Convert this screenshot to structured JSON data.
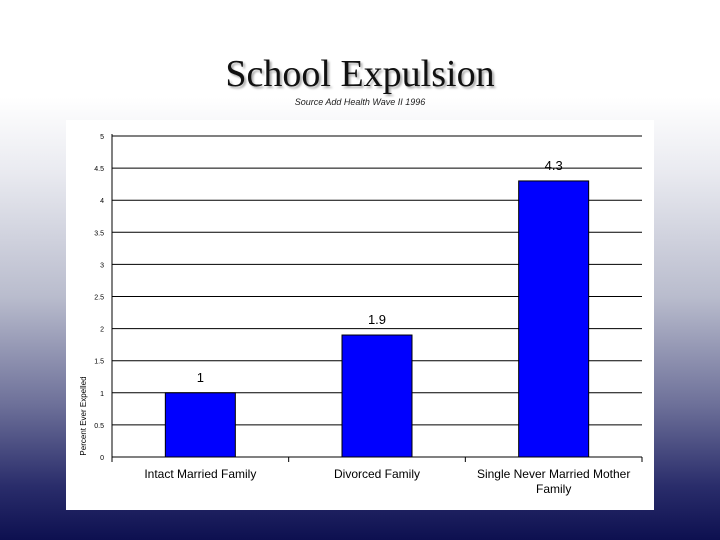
{
  "slide": {
    "title": "School Expulsion",
    "subtitle": "Source Add Health Wave II 1996"
  },
  "chart_data": {
    "type": "bar",
    "ylabel": "Percent Ever Expelled",
    "xlabel": "",
    "ylim": [
      0,
      5
    ],
    "yticks": [
      "0",
      "0.5",
      "1",
      "1.5",
      "2",
      "2.5",
      "3",
      "3.5",
      "4",
      "4.5",
      "5"
    ],
    "grid": true,
    "categories": [
      "Intact Married Family",
      "Divorced Family",
      "Single Never Married Mother Family"
    ],
    "values": [
      1,
      1.9,
      4.3
    ],
    "data_labels": [
      "1",
      "1.9",
      "4.3"
    ],
    "bar_color": "#0000ff"
  }
}
